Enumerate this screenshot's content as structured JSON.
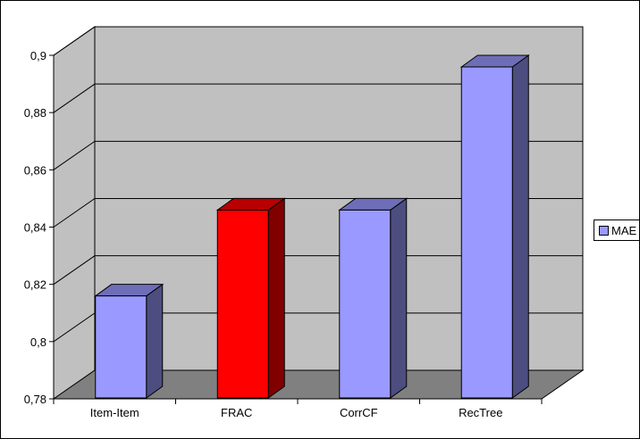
{
  "chart_data": {
    "type": "bar",
    "categories": [
      "Item-Item",
      "FRAC",
      "CorrCF",
      "RecTree"
    ],
    "series": [
      {
        "name": "MAE",
        "values": [
          0.82,
          0.85,
          0.85,
          0.9
        ]
      }
    ],
    "highlight_index": 1,
    "ylim": [
      0.78,
      0.9
    ],
    "yticks": [
      "0,78",
      "0,8",
      "0,82",
      "0,84",
      "0,86",
      "0,88",
      "0,9"
    ],
    "ytick_values": [
      0.78,
      0.8,
      0.82,
      0.84,
      0.86,
      0.88,
      0.9
    ],
    "grid": true,
    "legend_position": "right",
    "colors": {
      "bar": "#9999ff",
      "highlight": "#ff0000",
      "wall": "#c0c0c0",
      "floor": "#808080"
    }
  }
}
